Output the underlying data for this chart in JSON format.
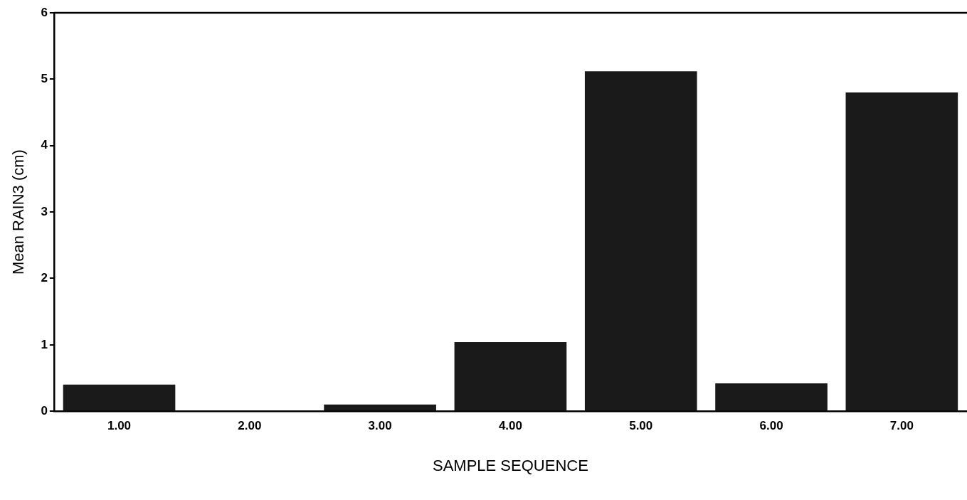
{
  "chart_data": {
    "type": "bar",
    "xlabel": "SAMPLE SEQUENCE",
    "ylabel": "Mean RAIN3 (cm)",
    "categories": [
      "1.00",
      "2.00",
      "3.00",
      "4.00",
      "5.00",
      "6.00",
      "7.00"
    ],
    "values": [
      0.4,
      0,
      0.1,
      1.04,
      5.12,
      0.42,
      4.8
    ],
    "color": "#1a1a1a",
    "ylim": [
      0,
      6
    ],
    "yticks": [
      0,
      1,
      2,
      3,
      4,
      5,
      6
    ],
    "grid": false,
    "legend": false
  }
}
